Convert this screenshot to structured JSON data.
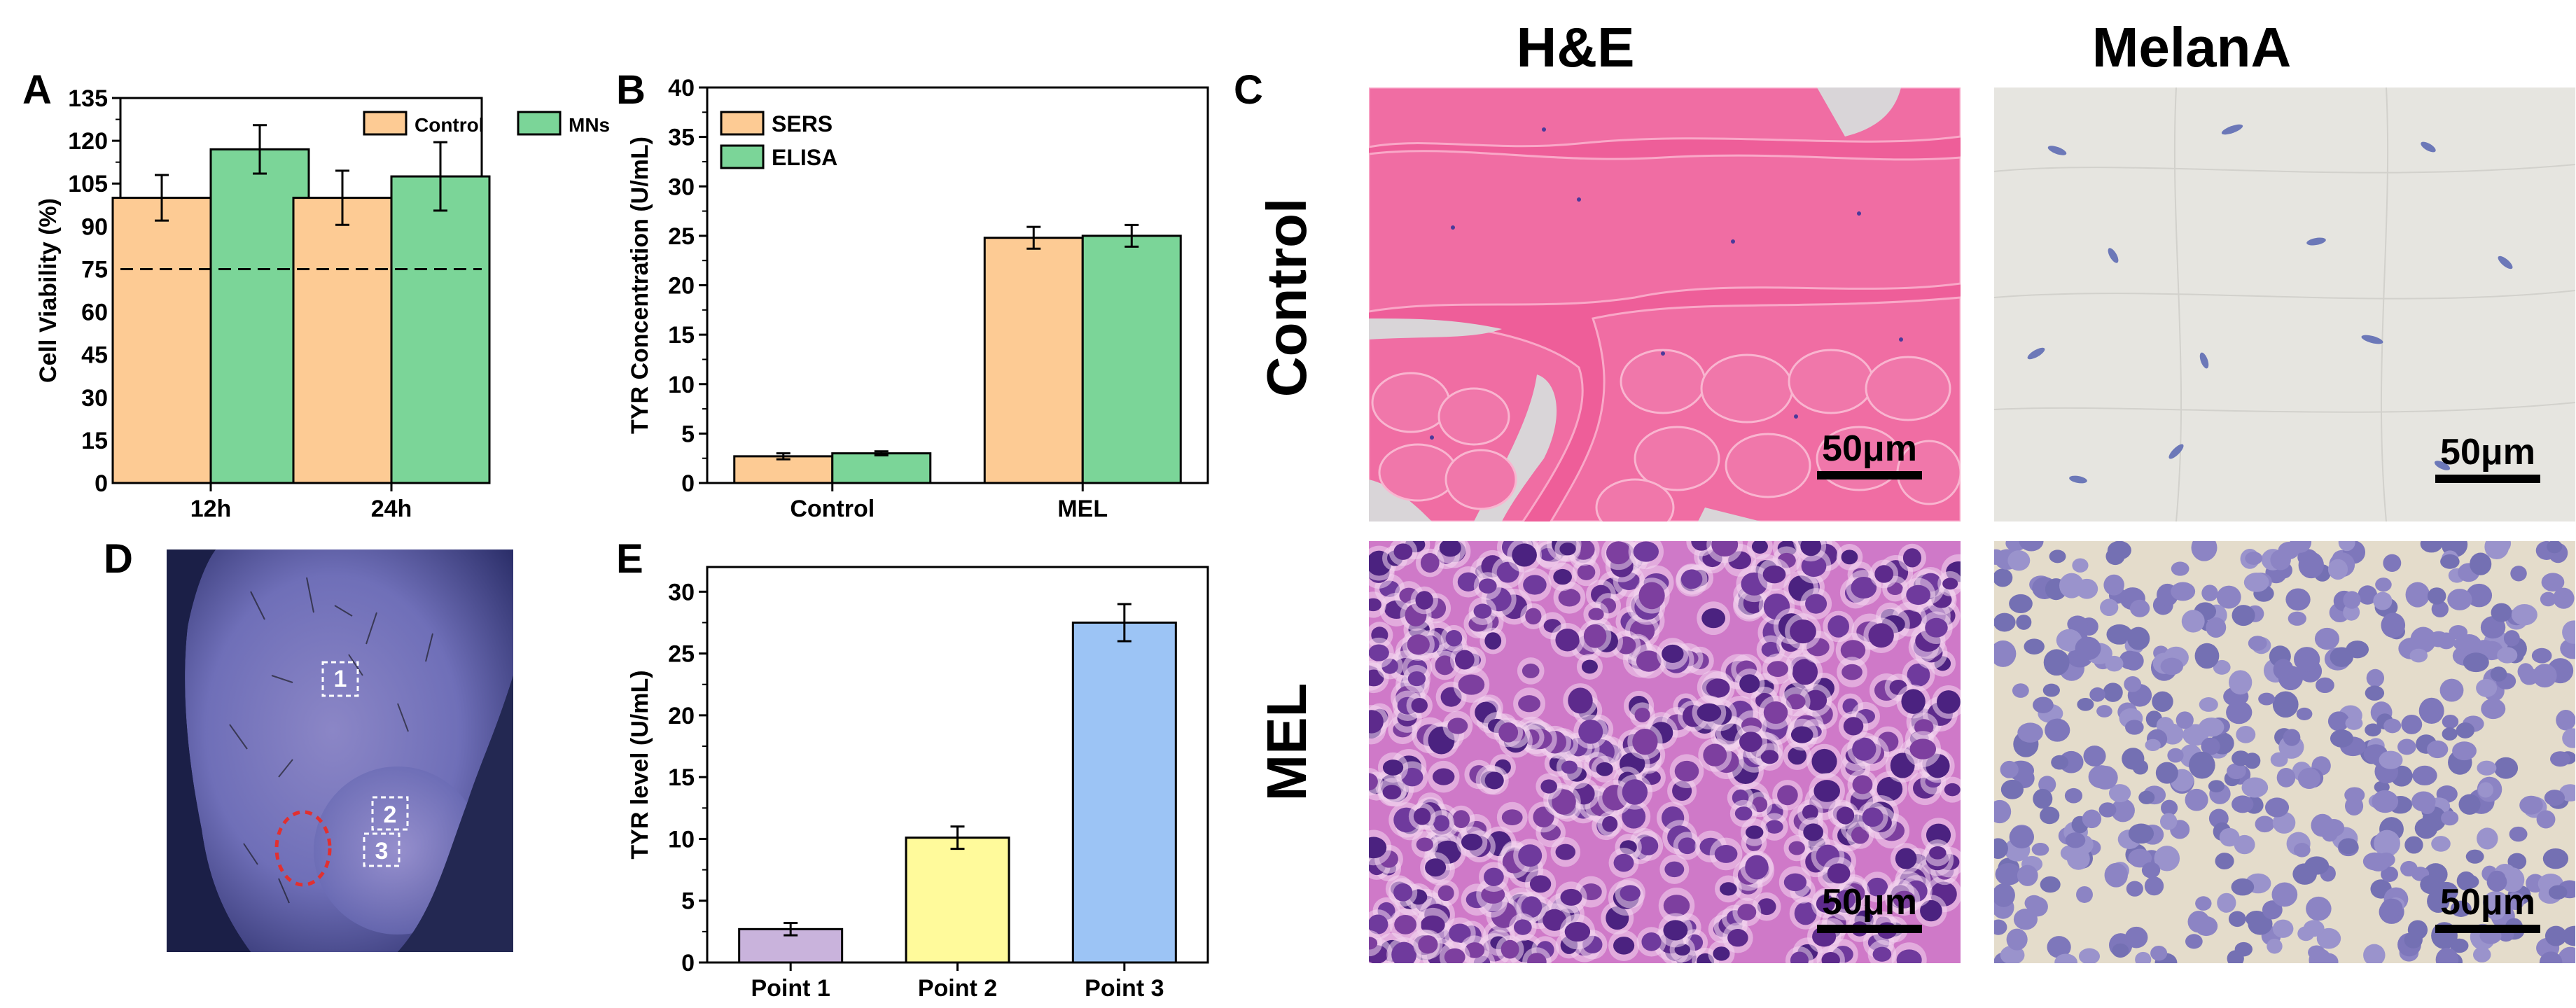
{
  "panels": {
    "a": "A",
    "b": "B",
    "c": "C",
    "d": "D",
    "e": "E"
  },
  "chart_data": [
    {
      "id": "A",
      "type": "bar",
      "ylabel": "Cell Viability (%)",
      "xlabel": "",
      "categories": [
        "12h",
        "24h"
      ],
      "ylim": [
        0,
        135
      ],
      "yticks": [
        0,
        15,
        30,
        45,
        60,
        75,
        90,
        105,
        120,
        135
      ],
      "series": [
        {
          "name": "Control",
          "color": "#fdcb94",
          "values": [
            100,
            100
          ],
          "errors": [
            8,
            9.5
          ]
        },
        {
          "name": "MNs",
          "color": "#7bd598",
          "values": [
            117,
            107.5
          ],
          "errors": [
            8.5,
            12
          ]
        }
      ],
      "reference_line": 75,
      "legend": "top-right"
    },
    {
      "id": "B",
      "type": "bar",
      "ylabel": "TYR Concentration (U/mL)",
      "xlabel": "",
      "categories": [
        "Control",
        "MEL"
      ],
      "ylim": [
        0,
        40
      ],
      "yticks": [
        0,
        5,
        10,
        15,
        20,
        25,
        30,
        35,
        40
      ],
      "series": [
        {
          "name": "SERS",
          "color": "#fdcb94",
          "values": [
            2.7,
            24.8
          ],
          "errors": [
            0.3,
            1.1
          ]
        },
        {
          "name": "ELISA",
          "color": "#7bd598",
          "values": [
            3.0,
            25.0
          ],
          "errors": [
            0.2,
            1.1
          ]
        }
      ],
      "legend": "top-left"
    },
    {
      "id": "E",
      "type": "bar",
      "ylabel": "TYR level (U/mL)",
      "xlabel": "",
      "categories": [
        "Point 1",
        "Point 2",
        "Point 3"
      ],
      "ylim": [
        0,
        32
      ],
      "yticks": [
        0,
        5,
        10,
        15,
        20,
        25,
        30
      ],
      "values": [
        2.7,
        10.1,
        27.5
      ],
      "errors": [
        0.5,
        0.9,
        1.5
      ],
      "colors": [
        "#c9b3dc",
        "#fffa9b",
        "#9cc4f5"
      ]
    }
  ],
  "histology": {
    "columns": [
      "H&E",
      "MelanA"
    ],
    "rows": [
      "Control",
      "MEL"
    ],
    "scale_label": "50μm"
  },
  "photo": {
    "markers": [
      "1",
      "2",
      "3"
    ]
  }
}
